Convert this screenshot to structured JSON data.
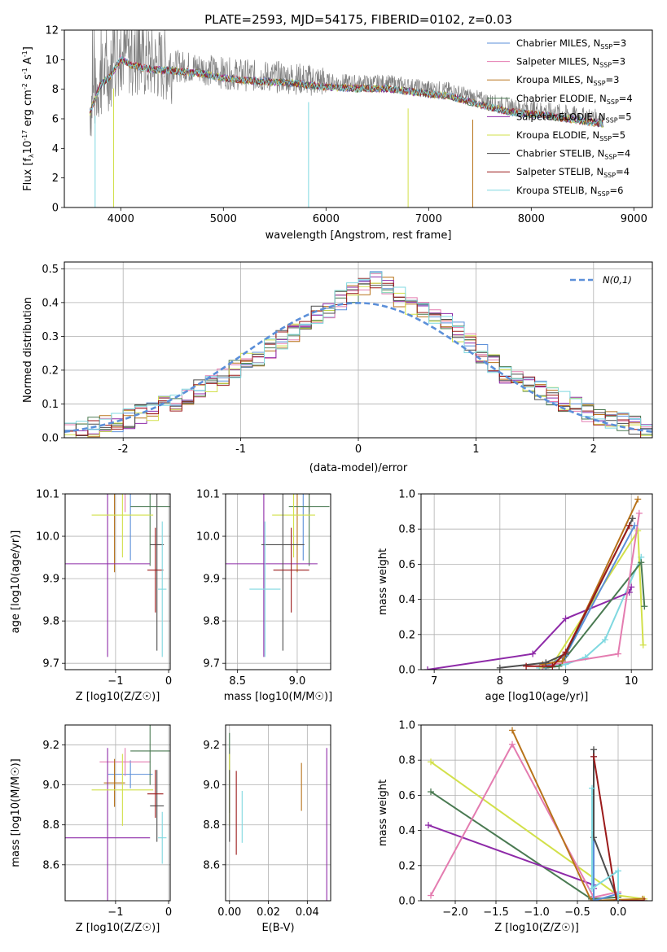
{
  "title": "PLATE=2593, MJD=54175, FIBERID=0102, z=0.03",
  "colors": {
    "Chabrier MILES": "#5b8fd9",
    "Salpeter MILES": "#e47cb0",
    "Kroupa MILES": "#b8731b",
    "Chabrier ELODIE": "#4a7a52",
    "Salpeter ELODIE": "#8e2aa8",
    "Kroupa ELODIE": "#d2e04a",
    "Chabrier STELIB": "#4d4d4d",
    "Salpeter STELIB": "#9b1a1a",
    "Kroupa STELIB": "#7fd8e0",
    "data": "#808080",
    "normal": "#5b8fd9"
  },
  "chart_data": [
    {
      "type": "line",
      "title": "PLATE=2593, MJD=54175, FIBERID=0102, z=0.03",
      "xlabel": "wavelength [Angstrom, rest frame]",
      "ylabel_main": "Flux [f",
      "ylabel_parts": [
        "Flux [f",
        "λ",
        "10",
        "-17",
        " erg cm",
        "-2",
        " s",
        "-1",
        " A",
        "-1",
        "]"
      ],
      "xlim": [
        3450,
        9180
      ],
      "ylim": [
        0,
        12
      ],
      "xticks": [
        4000,
        5000,
        6000,
        7000,
        8000,
        9000
      ],
      "yticks": [
        0,
        2,
        4,
        6,
        8,
        10,
        12
      ],
      "grid": false,
      "legend_position": "top-right",
      "legend": [
        {
          "name": "Chabrier MILES",
          "nssp": "3"
        },
        {
          "name": "Salpeter MILES",
          "nssp": "3"
        },
        {
          "name": "Kroupa MILES",
          "nssp": "3"
        },
        {
          "name": "Chabrier ELODIE",
          "nssp": "4"
        },
        {
          "name": "Salpeter ELODIE",
          "nssp": "5"
        },
        {
          "name": "Kroupa ELODIE",
          "nssp": "5"
        },
        {
          "name": "Chabrier STELIB",
          "nssp": "4"
        },
        {
          "name": "Salpeter STELIB",
          "nssp": "4"
        },
        {
          "name": "Kroupa STELIB",
          "nssp": "6"
        }
      ],
      "spectrum_envelope": {
        "x": [
          3700,
          3800,
          3900,
          4000,
          4100,
          4300,
          4500,
          4800,
          5000,
          5300,
          5600,
          6000,
          6300,
          6600,
          6900,
          7200,
          7500,
          7800,
          8100,
          8400,
          8700
        ],
        "y": [
          6.8,
          8.6,
          9.2,
          10.4,
          10.0,
          9.7,
          9.6,
          9.4,
          9.1,
          8.9,
          8.8,
          8.5,
          8.4,
          8.4,
          8.1,
          7.9,
          7.3,
          6.8,
          6.6,
          6.3,
          6.0
        ]
      },
      "model_dropouts": [
        {
          "x": 3750,
          "y": 0
        },
        {
          "x": 3930,
          "y": 0
        },
        {
          "x": 5830,
          "y": 0
        },
        {
          "x": 6800,
          "y": 0
        },
        {
          "x": 7430,
          "y": 0
        }
      ]
    },
    {
      "type": "line",
      "xlabel": "(data-model)/error",
      "ylabel": "Normed distribution",
      "xlim": [
        -2.5,
        2.5
      ],
      "ylim": [
        0,
        0.52
      ],
      "xticks": [
        -2,
        -1,
        0,
        1,
        2
      ],
      "yticks": [
        0.0,
        0.1,
        0.2,
        0.3,
        0.4,
        0.5
      ],
      "grid": true,
      "legend_position": "top-right",
      "legend_label": "N(0,1)",
      "histogram_peaks": {
        "x": [
          -2.4,
          -2.0,
          -1.6,
          -1.2,
          -0.8,
          -0.4,
          0.0,
          0.2,
          0.4,
          0.8,
          1.2,
          1.6,
          2.0,
          2.4
        ],
        "y": [
          0.02,
          0.05,
          0.1,
          0.17,
          0.25,
          0.35,
          0.44,
          0.47,
          0.4,
          0.33,
          0.2,
          0.13,
          0.07,
          0.03
        ]
      }
    },
    {
      "type": "scatter",
      "xlabel": "Z [log10(Z/Z☉)]",
      "ylabel": "age [log10(age/yr)]",
      "xlim": [
        -1.95,
        0.03
      ],
      "ylim": [
        9.685,
        10.1
      ],
      "xticks": [
        -1,
        0
      ],
      "xticklabels": [
        "−1",
        "0"
      ],
      "yticks": [
        9.7,
        9.8,
        9.9,
        10.0,
        10.1
      ],
      "points": [
        {
          "model": "Chabrier MILES",
          "x": -0.72,
          "y": 10.103,
          "xerr": 0.42,
          "yerr": 0.16
        },
        {
          "model": "Salpeter MILES",
          "x": -0.82,
          "y": 10.137,
          "xerr": 0.48,
          "yerr": 0.08
        },
        {
          "model": "Kroupa MILES",
          "x": -1.02,
          "y": 10.105,
          "xerr": 0.2,
          "yerr": 0.19
        },
        {
          "model": "Chabrier ELODIE",
          "x": -0.35,
          "y": 10.07,
          "xerr": 0.37,
          "yerr": 0.14
        },
        {
          "model": "Salpeter ELODIE",
          "x": -1.15,
          "y": 9.935,
          "xerr": 0.8,
          "yerr": 0.22
        },
        {
          "model": "Kroupa ELODIE",
          "x": -0.87,
          "y": 10.05,
          "xerr": 0.58,
          "yerr": 0.1
        },
        {
          "model": "Chabrier STELIB",
          "x": -0.22,
          "y": 9.98,
          "xerr": 0.13,
          "yerr": 0.25
        },
        {
          "model": "Salpeter STELIB",
          "x": -0.25,
          "y": 9.92,
          "xerr": 0.15,
          "yerr": 0.1
        },
        {
          "model": "Kroupa STELIB",
          "x": -0.12,
          "y": 9.875,
          "xerr": 0.08,
          "yerr": 0.16
        }
      ]
    },
    {
      "type": "scatter",
      "xlabel": "mass [log10(M/M☉)]",
      "ylabel": "",
      "xlim": [
        8.4,
        9.28
      ],
      "ylim": [
        9.685,
        10.1
      ],
      "xticks": [
        8.5,
        9.0
      ],
      "xticklabels": [
        "8.5",
        "9.0"
      ],
      "yticks": [
        9.7,
        9.8,
        9.9,
        10.0,
        10.1
      ],
      "points": [
        {
          "model": "Chabrier MILES",
          "x": 9.05,
          "y": 10.103,
          "xerr": 0.07,
          "yerr": 0.16
        },
        {
          "model": "Salpeter MILES",
          "x": 9.1,
          "y": 10.137,
          "xerr": 0.07,
          "yerr": 0.08
        },
        {
          "model": "Kroupa MILES",
          "x": 9.0,
          "y": 10.105,
          "xerr": 0.12,
          "yerr": 0.19
        },
        {
          "model": "Chabrier ELODIE",
          "x": 9.1,
          "y": 10.07,
          "xerr": 0.17,
          "yerr": 0.14
        },
        {
          "model": "Salpeter ELODIE",
          "x": 8.72,
          "y": 9.935,
          "xerr": 0.45,
          "yerr": 0.22
        },
        {
          "model": "Kroupa ELODIE",
          "x": 8.97,
          "y": 10.05,
          "xerr": 0.18,
          "yerr": 0.1
        },
        {
          "model": "Chabrier STELIB",
          "x": 8.88,
          "y": 9.98,
          "xerr": 0.18,
          "yerr": 0.25
        },
        {
          "model": "Salpeter STELIB",
          "x": 8.95,
          "y": 9.92,
          "xerr": 0.15,
          "yerr": 0.1
        },
        {
          "model": "Kroupa STELIB",
          "x": 8.73,
          "y": 9.875,
          "xerr": 0.13,
          "yerr": 0.16
        }
      ]
    },
    {
      "type": "line",
      "xlabel": "age  [log10(age/yr)]",
      "ylabel": "mass weight",
      "xlim": [
        6.8,
        10.32
      ],
      "ylim": [
        0,
        1.0
      ],
      "xticks": [
        7,
        8,
        9,
        10
      ],
      "xticklabels": [
        "7",
        "8",
        "9",
        "10"
      ],
      "yticks": [
        0.0,
        0.2,
        0.4,
        0.6,
        0.8,
        1.0
      ],
      "grid": true,
      "series": [
        {
          "model": "Kroupa STELIB",
          "x": [
            8.6,
            9.0,
            9.3,
            9.6,
            10.15
          ],
          "y": [
            0.01,
            0.03,
            0.07,
            0.17,
            0.64
          ]
        },
        {
          "model": "Salpeter ELODIE",
          "x": [
            6.9,
            8.5,
            9.0,
            9.97,
            10.0
          ],
          "y": [
            0.0,
            0.09,
            0.29,
            0.44,
            0.47
          ]
        },
        {
          "model": "Kroupa ELODIE",
          "x": [
            8.65,
            8.8,
            10.1,
            10.18
          ],
          "y": [
            0.01,
            0.03,
            0.79,
            0.14
          ]
        },
        {
          "model": "Chabrier ELODIE",
          "x": [
            8.7,
            8.9,
            10.15,
            10.2
          ],
          "y": [
            0.01,
            0.02,
            0.61,
            0.36
          ]
        },
        {
          "model": "Salpeter MILES",
          "x": [
            8.65,
            9.8,
            10.12
          ],
          "y": [
            0.02,
            0.09,
            0.89
          ]
        },
        {
          "model": "Chabrier MILES",
          "x": [
            8.7,
            9.0,
            10.05
          ],
          "y": [
            0.02,
            0.08,
            0.82
          ]
        },
        {
          "model": "Kroupa MILES",
          "x": [
            8.65,
            8.95,
            10.1
          ],
          "y": [
            0.03,
            0.05,
            0.97
          ]
        },
        {
          "model": "Chabrier STELIB",
          "x": [
            8.0,
            8.7,
            9.0,
            10.02
          ],
          "y": [
            0.01,
            0.04,
            0.09,
            0.86
          ]
        },
        {
          "model": "Salpeter STELIB",
          "x": [
            8.4,
            8.8,
            9.0,
            9.97
          ],
          "y": [
            0.02,
            0.02,
            0.1,
            0.82
          ]
        }
      ]
    },
    {
      "type": "scatter",
      "xlabel": "Z [log10(Z/Z☉)]",
      "ylabel": "mass [log10(M/M☉)]",
      "xlim": [
        -1.95,
        0.03
      ],
      "ylim": [
        8.42,
        9.3
      ],
      "xticks": [
        -1,
        0
      ],
      "xticklabels": [
        "−1",
        "0"
      ],
      "yticks": [
        8.6,
        8.8,
        9.0,
        9.2
      ],
      "points": [
        {
          "model": "Chabrier MILES",
          "x": -0.72,
          "y": 9.053,
          "xerr": 0.42,
          "yerr": 0.07
        },
        {
          "model": "Salpeter MILES",
          "x": -0.82,
          "y": 9.115,
          "xerr": 0.48,
          "yerr": 0.07
        },
        {
          "model": "Kroupa MILES",
          "x": -1.02,
          "y": 9.01,
          "xerr": 0.2,
          "yerr": 0.12
        },
        {
          "model": "Chabrier ELODIE",
          "x": -0.35,
          "y": 9.17,
          "xerr": 0.37,
          "yerr": 0.17
        },
        {
          "model": "Salpeter ELODIE",
          "x": -1.15,
          "y": 8.735,
          "xerr": 0.8,
          "yerr": 0.45
        },
        {
          "model": "Kroupa ELODIE",
          "x": -0.87,
          "y": 8.975,
          "xerr": 0.58,
          "yerr": 0.18
        },
        {
          "model": "Chabrier STELIB",
          "x": -0.22,
          "y": 8.895,
          "xerr": 0.13,
          "yerr": 0.18
        },
        {
          "model": "Salpeter STELIB",
          "x": -0.25,
          "y": 8.955,
          "xerr": 0.15,
          "yerr": 0.12
        },
        {
          "model": "Kroupa STELIB",
          "x": -0.12,
          "y": 8.735,
          "xerr": 0.08,
          "yerr": 0.13
        }
      ]
    },
    {
      "type": "scatter",
      "xlabel": "E(B-V)",
      "ylabel": "",
      "xlim": [
        -0.002,
        0.052
      ],
      "ylim": [
        8.42,
        9.3
      ],
      "xticks": [
        0.0,
        0.02,
        0.04
      ],
      "xticklabels": [
        "0.00",
        "0.02",
        "0.04"
      ],
      "yticks": [
        8.6,
        8.8,
        9.0,
        9.2
      ],
      "points": [
        {
          "model": "Chabrier MILES",
          "x": 0.0,
          "y": 9.053,
          "yerr": 0.07
        },
        {
          "model": "Salpeter MILES",
          "x": 0.0,
          "y": 9.115,
          "yerr": 0.07
        },
        {
          "model": "Kroupa MILES",
          "x": 0.037,
          "y": 8.99,
          "yerr": 0.12
        },
        {
          "model": "Chabrier ELODIE",
          "x": 0.0,
          "y": 9.06,
          "yerr": 0.2
        },
        {
          "model": "Salpeter ELODIE",
          "x": 0.05,
          "y": 8.735,
          "yerr": 0.45
        },
        {
          "model": "Kroupa ELODIE",
          "x": 0.0,
          "y": 8.975,
          "yerr": 0.18
        },
        {
          "model": "Chabrier STELIB",
          "x": 0.0,
          "y": 8.895,
          "yerr": 0.18
        },
        {
          "model": "Salpeter STELIB",
          "x": 0.0035,
          "y": 8.86,
          "yerr": 0.21
        },
        {
          "model": "Kroupa STELIB",
          "x": 0.0065,
          "y": 8.84,
          "yerr": 0.13
        }
      ]
    },
    {
      "type": "line",
      "xlabel": "Z [log10(Z/Z☉)]",
      "ylabel": "mass weight",
      "xlim": [
        -2.42,
        0.42
      ],
      "ylim": [
        0,
        1.0
      ],
      "xticks": [
        -2.0,
        -1.5,
        -1.0,
        -0.5,
        0.0
      ],
      "xticklabels": [
        "−2.0",
        "−1.5",
        "−1.0",
        "−0.5",
        "0.0"
      ],
      "yticks": [
        0.0,
        0.2,
        0.4,
        0.6,
        0.8,
        1.0
      ],
      "grid": true,
      "series": [
        {
          "model": "Kroupa ELODIE",
          "x": [
            -2.3,
            0.0,
            0.32
          ],
          "y": [
            0.79,
            0.03,
            0.01
          ]
        },
        {
          "model": "Chabrier ELODIE",
          "x": [
            -2.3,
            -0.33,
            0.0
          ],
          "y": [
            0.62,
            0.01,
            0.02
          ]
        },
        {
          "model": "Salpeter ELODIE",
          "x": [
            -2.33,
            -0.3,
            -0.3
          ],
          "y": [
            0.43,
            0.09,
            0.07
          ]
        },
        {
          "model": "Salpeter MILES",
          "x": [
            -2.3,
            -1.3,
            -0.3,
            0.0
          ],
          "y": [
            0.03,
            0.89,
            0.02,
            0.05
          ]
        },
        {
          "model": "Kroupa MILES",
          "x": [
            -1.3,
            -0.33,
            0.3
          ],
          "y": [
            0.97,
            0.0,
            0.01
          ]
        },
        {
          "model": "Chabrier MILES",
          "x": [
            -0.3,
            -0.3,
            0.0
          ],
          "y": [
            0.82,
            0.0,
            0.04
          ]
        },
        {
          "model": "Chabrier STELIB",
          "x": [
            -0.3,
            -0.3,
            0.0
          ],
          "y": [
            0.86,
            0.36,
            0.0
          ]
        },
        {
          "model": "Salpeter STELIB",
          "x": [
            -0.3,
            -0.02,
            0.32
          ],
          "y": [
            0.82,
            0.0,
            0.0
          ]
        },
        {
          "model": "Kroupa STELIB",
          "x": [
            -0.32,
            -0.32,
            0.0,
            0.0
          ],
          "y": [
            0.64,
            0.07,
            0.17,
            0.0
          ]
        }
      ]
    }
  ]
}
